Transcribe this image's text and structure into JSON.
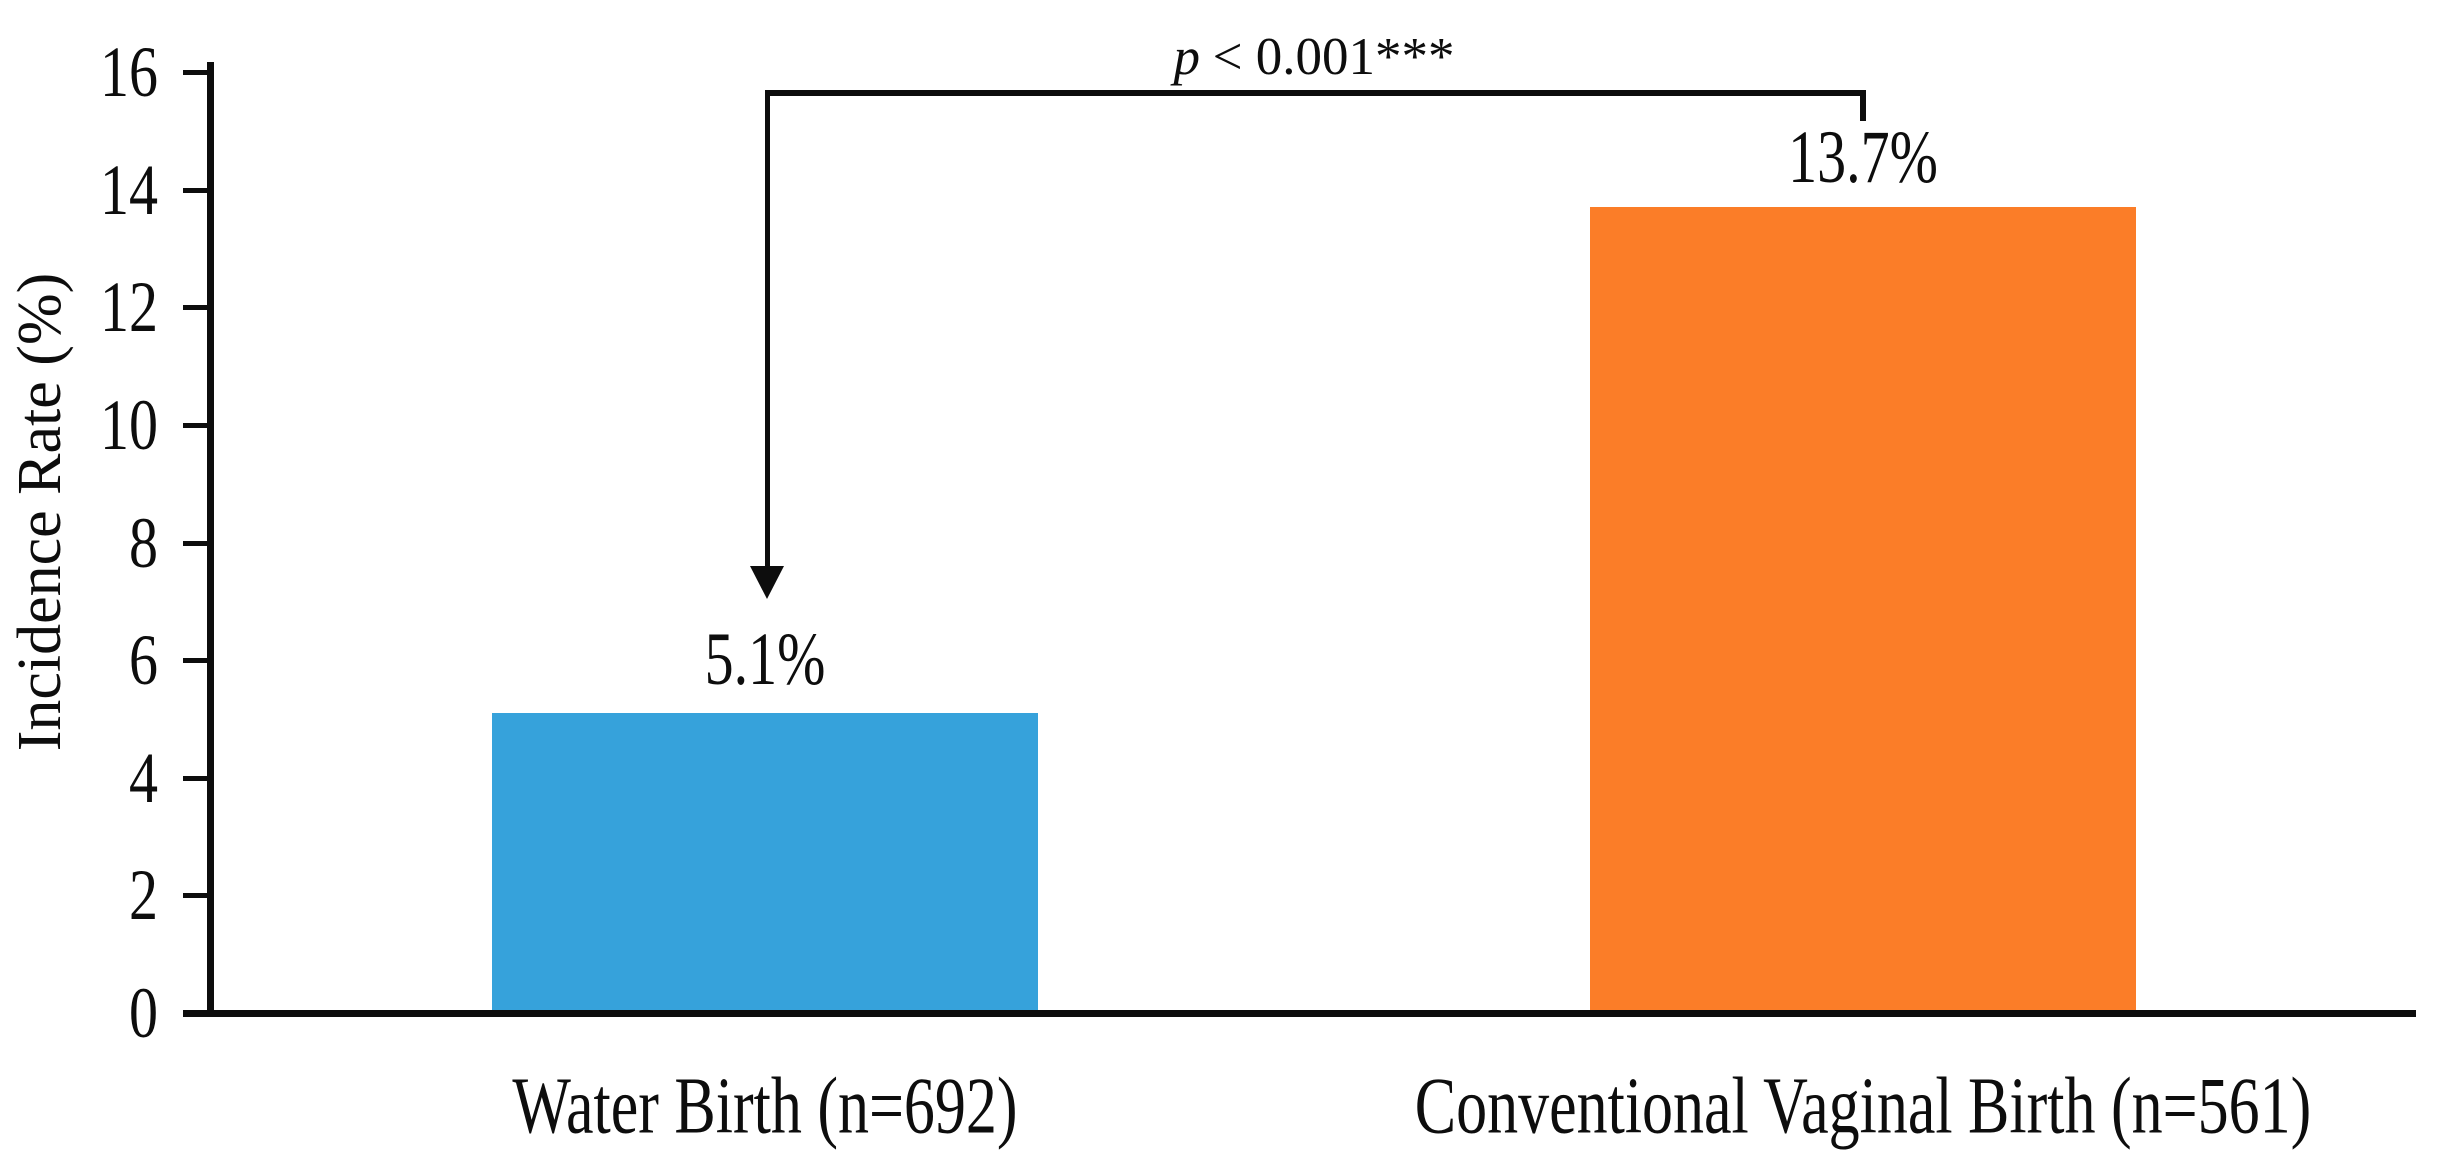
{
  "chart_data": {
    "type": "bar",
    "title": "",
    "ylabel": "Incidence Rate (%)",
    "xlabel": "",
    "categories": [
      "Water Birth (n=692)",
      "Conventional Vaginal Birth (n=561)"
    ],
    "values": [
      5.1,
      13.7
    ],
    "value_labels": [
      "5.1%",
      "13.7%"
    ],
    "series_colors": [
      "#36A2DB",
      "#FB7D28"
    ],
    "ink_color": "#0d0d0d",
    "background_color": "#ffffff",
    "ylim": [
      0,
      16
    ],
    "yticks": [
      0,
      2,
      4,
      6,
      8,
      10,
      12,
      14,
      16
    ],
    "grid": false,
    "legend": "none",
    "annotation": {
      "p": "p",
      "comparison": "< 0.001***",
      "full_text": "p < 0.001***"
    }
  }
}
